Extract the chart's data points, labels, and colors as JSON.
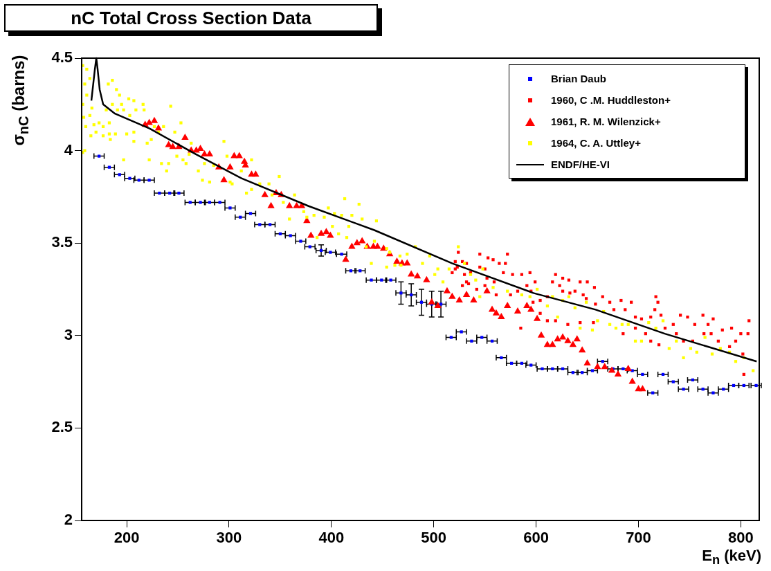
{
  "chart_data": {
    "type": "scatter",
    "title": "nC Total Cross Section Data",
    "xlabel": "E$_{n}$ (keV)",
    "ylabel": "σ$_{nC}$ (barns)",
    "xlim": [
      156,
      818
    ],
    "xticks": [
      200,
      300,
      400,
      500,
      600,
      700,
      800
    ],
    "ylim": [
      2,
      4.5
    ],
    "yticks": [
      2,
      2.5,
      3,
      3.5,
      4,
      4.5
    ],
    "grid": false,
    "legend": "top right",
    "series": [
      {
        "name": "Brian Daub",
        "type": "scatter",
        "marker": "square",
        "color": "#0000ff",
        "x": [
          173,
          183,
          193,
          203,
          212,
          222,
          232,
          242,
          251,
          262,
          272,
          281,
          291,
          301,
          311,
          321,
          330,
          340,
          350,
          360,
          370,
          379,
          390,
          399,
          410,
          419,
          428,
          439,
          449,
          458,
          468,
          478,
          488,
          498,
          507,
          517,
          527,
          537,
          547,
          557,
          566,
          576,
          586,
          595,
          606,
          616,
          626,
          636,
          645,
          655,
          665,
          675,
          685,
          694,
          704,
          714,
          724,
          734,
          744,
          753,
          763,
          773,
          783,
          793,
          803,
          815
        ],
        "values": [
          3.97,
          3.91,
          3.87,
          3.85,
          3.84,
          3.84,
          3.77,
          3.77,
          3.77,
          3.72,
          3.72,
          3.72,
          3.72,
          3.69,
          3.64,
          3.66,
          3.6,
          3.6,
          3.55,
          3.54,
          3.51,
          3.48,
          3.46,
          3.45,
          3.44,
          3.35,
          3.35,
          3.3,
          3.3,
          3.3,
          3.23,
          3.22,
          3.18,
          3.17,
          3.17,
          2.99,
          3.02,
          2.97,
          2.99,
          2.97,
          2.88,
          2.85,
          2.85,
          2.84,
          2.82,
          2.82,
          2.82,
          2.8,
          2.8,
          2.81,
          2.86,
          2.82,
          2.82,
          2.81,
          2.79,
          2.69,
          2.79,
          2.75,
          2.71,
          2.76,
          2.71,
          2.69,
          2.71,
          2.73,
          2.73,
          2.73
        ],
        "errors": [
          null,
          null,
          null,
          null,
          null,
          null,
          null,
          null,
          null,
          null,
          null,
          null,
          null,
          null,
          null,
          null,
          null,
          null,
          null,
          null,
          null,
          null,
          0.03,
          null,
          null,
          null,
          null,
          null,
          null,
          null,
          0.06,
          0.06,
          0.07,
          0.07,
          0.07,
          null,
          null,
          null,
          null,
          null,
          null,
          null,
          null,
          null,
          null,
          null,
          null,
          null,
          null,
          null,
          null,
          null,
          null,
          null,
          null,
          null,
          null,
          null,
          null,
          null,
          null,
          null,
          null,
          null,
          null,
          null
        ],
        "xerrors": [
          5,
          5,
          5,
          5,
          5,
          5,
          5,
          5,
          5,
          5,
          5,
          5,
          5,
          5,
          5,
          5,
          5,
          5,
          5,
          5,
          5,
          5,
          5,
          5,
          5,
          5,
          5,
          5,
          5,
          5,
          5,
          5,
          5,
          5,
          5,
          5,
          5,
          5,
          5,
          5,
          5,
          5,
          5,
          5,
          5,
          5,
          5,
          5,
          5,
          5,
          5,
          5,
          5,
          5,
          5,
          5,
          5,
          5,
          5,
          5,
          5,
          5,
          5,
          5,
          5,
          5
        ]
      },
      {
        "name": "1960, C .M. Huddleston+",
        "type": "scatter",
        "marker": "square",
        "color": "#ff0000",
        "x": [
          524,
          545,
          553,
          558,
          572,
          521,
          528,
          532,
          523,
          518,
          530,
          536,
          545,
          550,
          564,
          570,
          568,
          577,
          586,
          594,
          532,
          541,
          552,
          559,
          528,
          542,
          550,
          561,
          575,
          582,
          591,
          585,
          521,
          534,
          599,
          595,
          597,
          604,
          611,
          616,
          619,
          623,
          626,
          626,
          632,
          633,
          638,
          643,
          650,
          657,
          646,
          649,
          658,
          665,
          672,
          676,
          683,
          687,
          693,
          717,
          719,
          716,
          697,
          703,
          712,
          722,
          697,
          707,
          712,
          720,
          685,
          726,
          734,
          741,
          748,
          763,
          773,
          755,
          768,
          737,
          744,
          753,
          764,
          771,
          778,
          782,
          791,
          795,
          800,
          808,
          807,
          789,
          802,
          803,
          611,
          619,
          631,
          643,
          656,
          604
        ],
        "values": [
          3.45,
          3.44,
          3.42,
          3.41,
          3.44,
          3.4,
          3.4,
          3.39,
          3.37,
          3.34,
          3.33,
          3.34,
          3.37,
          3.36,
          3.39,
          3.39,
          3.34,
          3.33,
          3.33,
          3.34,
          3.29,
          null,
          3.31,
          3.29,
          3.27,
          3.25,
          3.27,
          3.22,
          3.22,
          3.24,
          3.27,
          3.04,
          3.36,
          3.28,
          3.29,
          3.24,
          3.18,
          3.19,
          3.21,
          3.29,
          3.33,
          3.27,
          3.31,
          3.24,
          3.3,
          3.23,
          3.24,
          3.29,
          3.29,
          3.26,
          3.22,
          3.2,
          3.17,
          3.21,
          3.18,
          3.14,
          3.19,
          3.14,
          3.18,
          3.21,
          3.18,
          3.14,
          3.1,
          3.09,
          3.1,
          3.11,
          3.04,
          3.01,
          2.97,
          2.95,
          3.01,
          3.04,
          3.06,
          3.11,
          3.1,
          3.11,
          3.09,
          3.06,
          3.06,
          3.01,
          2.97,
          2.97,
          3.01,
          3.01,
          2.97,
          3.03,
          3.04,
          2.97,
          3.01,
          3.08,
          3.01,
          2.94,
          2.9,
          2.79,
          3.08,
          3.08,
          3.06,
          3.07,
          3.07,
          3.12
        ]
      },
      {
        "name": "1961, R. M. Wilenzick+",
        "type": "scatter",
        "marker": "triangle",
        "color": "#ff0000",
        "x": [
          218,
          222,
          227,
          231,
          241,
          245,
          251,
          257,
          263,
          268,
          272,
          276,
          281,
          290,
          295,
          301,
          305,
          310,
          315,
          316,
          322,
          326,
          335,
          341,
          346,
          351,
          359,
          366,
          371,
          376,
          380,
          390,
          395,
          399,
          414,
          420,
          425,
          430,
          435,
          441,
          445,
          451,
          457,
          464,
          469,
          474,
          478,
          484,
          493,
          498,
          504,
          513,
          518,
          525,
          532,
          539,
          552,
          557,
          561,
          566,
          572,
          582,
          591,
          595,
          601,
          605,
          611,
          616,
          621,
          626,
          631,
          636,
          640,
          645,
          650,
          660,
          667,
          674,
          680,
          690,
          694,
          700,
          704
        ],
        "values": [
          4.14,
          4.15,
          4.16,
          4.12,
          4.03,
          4.02,
          4.02,
          4.07,
          4.0,
          4.0,
          4.01,
          3.98,
          3.98,
          3.91,
          3.84,
          3.91,
          3.97,
          3.97,
          3.94,
          3.92,
          3.87,
          3.87,
          3.76,
          3.7,
          3.77,
          3.76,
          3.7,
          3.7,
          3.7,
          3.62,
          3.54,
          3.55,
          3.56,
          3.54,
          3.41,
          3.48,
          3.5,
          3.51,
          3.48,
          3.48,
          3.48,
          3.47,
          3.44,
          3.4,
          3.39,
          3.39,
          3.33,
          3.32,
          3.3,
          3.18,
          3.16,
          3.24,
          3.21,
          3.19,
          3.22,
          3.19,
          3.24,
          3.14,
          3.12,
          3.1,
          3.16,
          3.13,
          3.16,
          3.14,
          3.09,
          3.0,
          2.95,
          2.95,
          2.98,
          2.99,
          2.97,
          2.95,
          2.98,
          2.92,
          2.85,
          2.83,
          2.83,
          2.81,
          2.79,
          2.82,
          2.75,
          2.71,
          2.71
        ]
      },
      {
        "name": "1964, C. A. Uttley+",
        "type": "scatter",
        "marker": "square",
        "color": "#ffff00",
        "x": [
          157,
          161,
          164,
          159,
          161,
          157,
          166,
          158,
          164,
          160,
          168,
          165,
          170,
          173,
          177,
          177,
          183,
          184,
          189,
          180,
          183,
          182,
          186,
          190,
          193,
          195,
          186,
          191,
          197,
          202,
          207,
          203,
          209,
          207,
          200,
          207,
          216,
          217,
          220,
          224,
          227,
          231,
          236,
          243,
          247,
          253,
          222,
          197,
          234,
          241,
          239,
          249,
          255,
          258,
          261,
          263,
          270,
          274,
          281,
          276,
          285,
          295,
          298,
          301,
          303,
          312,
          322,
          317,
          322,
          330,
          339,
          342,
          349,
          353,
          359,
          364,
          373,
          157,
          159,
          376,
          383,
          393,
          397,
          403,
          410,
          413,
          427,
          430,
          420,
          417,
          401,
          407,
          415,
          444,
          442,
          434,
          454,
          457,
          467,
          439,
          454,
          462,
          468,
          474,
          482,
          489,
          496,
          504,
          501,
          509,
          515,
          524,
          530,
          536,
          541,
          548,
          558,
          572,
          586,
          545,
          594,
          386,
          601,
          611,
          616,
          626,
          632,
          638,
          643,
          649,
          655,
          660,
          666,
          672,
          678,
          684,
          690,
          697,
          703,
          710,
          717,
          724,
          730,
          737,
          744,
          751,
          757,
          765,
          772,
          780,
          789,
          795,
          803,
          812,
          621
        ],
        "values": [
          4.46,
          4.44,
          4.39,
          4.36,
          4.3,
          4.25,
          4.23,
          4.18,
          4.19,
          4.13,
          4.14,
          4.08,
          4.1,
          4.15,
          4.13,
          4.08,
          4.09,
          4.06,
          4.09,
          4.22,
          4.15,
          4.36,
          4.38,
          4.33,
          4.3,
          4.25,
          4.25,
          4.22,
          4.22,
          4.28,
          4.27,
          4.19,
          4.22,
          4.1,
          4.09,
          4.05,
          4.25,
          4.22,
          4.04,
          4.06,
          4.13,
          4.1,
          4.13,
          4.24,
          4.1,
          4.15,
          3.95,
          3.95,
          3.93,
          3.93,
          3.89,
          3.97,
          3.95,
          3.93,
          3.98,
          4.04,
          3.89,
          3.84,
          3.83,
          3.93,
          3.92,
          4.05,
          3.97,
          3.83,
          3.82,
          3.89,
          3.95,
          3.77,
          3.79,
          3.82,
          3.82,
          3.76,
          3.86,
          3.72,
          3.63,
          3.76,
          3.67,
          3.99,
          4.0,
          3.64,
          3.65,
          3.64,
          3.69,
          3.66,
          3.65,
          3.74,
          3.71,
          3.63,
          3.65,
          3.59,
          3.59,
          3.55,
          3.53,
          3.62,
          3.51,
          3.48,
          3.47,
          3.45,
          3.43,
          3.39,
          3.37,
          3.38,
          3.38,
          3.44,
          3.48,
          3.39,
          3.43,
          3.36,
          3.33,
          3.29,
          3.36,
          3.48,
          3.39,
          3.33,
          3.3,
          3.36,
          3.26,
          3.24,
          3.22,
          3.21,
          3.21,
          3.53,
          3.25,
          3.16,
          3.21,
          3.19,
          3.21,
          3.15,
          3.04,
          3.18,
          3.03,
          3.08,
          3.13,
          3.06,
          3.04,
          3.06,
          3.06,
          2.97,
          2.97,
          3.07,
          3.04,
          3.08,
          2.93,
          2.97,
          2.88,
          2.93,
          2.91,
          2.99,
          2.9,
          2.93,
          2.91,
          2.86,
          2.88,
          2.81,
          3.1
        ]
      },
      {
        "name": "ENDF/HE-VI",
        "type": "line",
        "marker": "none",
        "color": "#000000",
        "x": [
          165.5,
          168.9,
          170.3,
          171.6,
          173.6,
          177,
          188.5,
          222.3,
          267.6,
          312.2,
          377.7,
          441.9,
          518.2,
          597.3,
          658.1,
          725.7,
          815.5
        ],
        "values": [
          4.27,
          4.44,
          4.5,
          4.44,
          4.33,
          4.25,
          4.2,
          4.12,
          3.98,
          3.85,
          3.7,
          3.57,
          3.39,
          3.23,
          3.14,
          3.01,
          2.86
        ]
      }
    ]
  }
}
